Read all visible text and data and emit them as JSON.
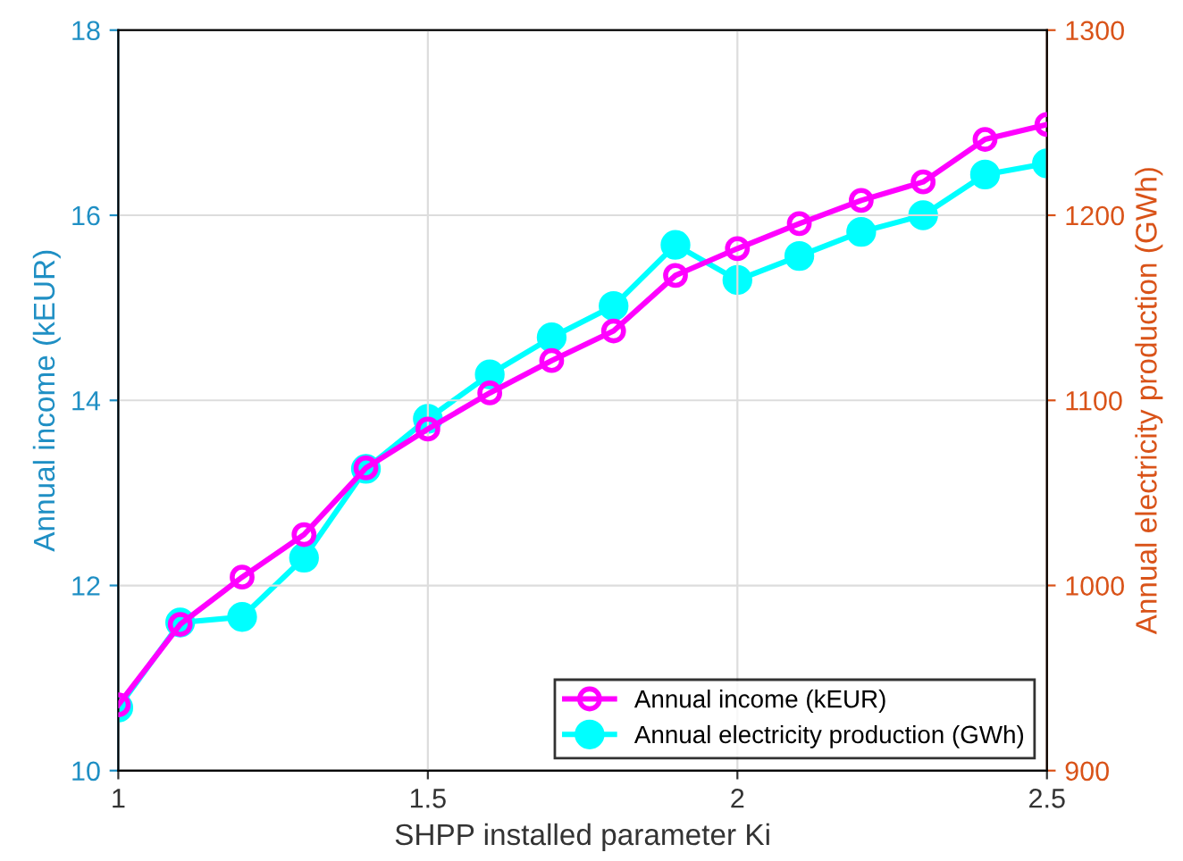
{
  "chart_data": {
    "type": "line",
    "xlabel": "SHPP installed parameter Ki",
    "ylabel": "Annual income (kEUR)",
    "y2label": "Annual electricity production (GWh)",
    "x": [
      1,
      1.1,
      1.2,
      1.3,
      1.4,
      1.5,
      1.6,
      1.7,
      1.8,
      1.9,
      2.0,
      2.1,
      2.2,
      2.3,
      2.4,
      2.5
    ],
    "series": [
      {
        "name": "Annual income (kEUR)",
        "color": "#ff00ff",
        "axis": "y",
        "marker": "circle",
        "values": [
          10.71,
          11.58,
          12.09,
          12.55,
          13.27,
          13.69,
          14.08,
          14.43,
          14.75,
          15.35,
          15.64,
          15.91,
          16.16,
          16.36,
          16.82,
          16.98
        ]
      },
      {
        "name": "Annual electricity production (GWh)",
        "color": "#00ffff",
        "axis": "y2",
        "marker": "circle",
        "values": [
          934,
          980,
          983,
          1015,
          1063,
          1090,
          1114,
          1134,
          1151,
          1184,
          1165,
          1178,
          1191,
          1200,
          1222,
          1228
        ]
      }
    ],
    "xlim": [
      1,
      2.5
    ],
    "xticks": [
      1,
      1.5,
      2,
      2.5
    ],
    "ylim": [
      10,
      18
    ],
    "yticks": [
      10,
      12,
      14,
      16,
      18
    ],
    "y2lim": [
      900,
      1300
    ],
    "y2ticks": [
      900,
      1000,
      1100,
      1200,
      1300
    ],
    "grid": true,
    "legend": "bottom right"
  }
}
